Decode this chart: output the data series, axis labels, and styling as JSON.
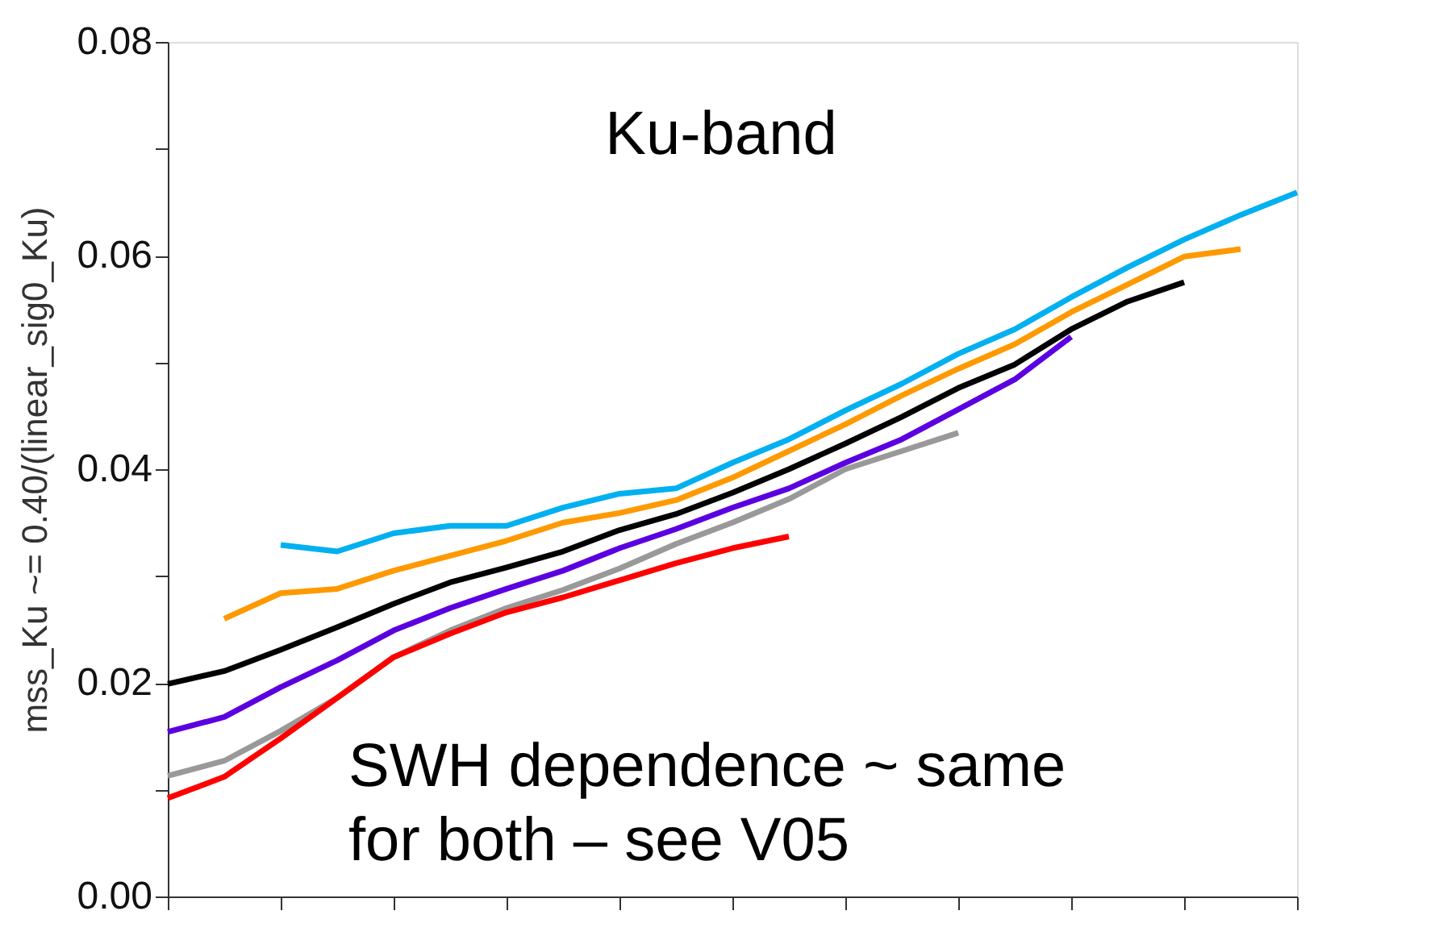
{
  "chart_data": {
    "type": "line",
    "ylabel": "mss_Ku ~= 0.40/(linear_sig0_Ku)",
    "annotations": [
      "Ku-band",
      "SWH dependence ~ same\nfor both – see V05"
    ],
    "categories": [
      null,
      null,
      null,
      null,
      null,
      null,
      null,
      null,
      null,
      null,
      null,
      null,
      null,
      null,
      null,
      null,
      null,
      null,
      null,
      null,
      null
    ],
    "series": [
      {
        "color": "#00b0f0",
        "values": [
          null,
          null,
          0.0329,
          0.0323,
          0.034,
          0.0347,
          0.0347,
          0.0364,
          0.0377,
          0.0382,
          0.0406,
          0.0428,
          0.0455,
          0.048,
          0.0508,
          0.0531,
          0.0561,
          0.0589,
          0.0615,
          0.0638,
          0.0659
        ]
      },
      {
        "color": "#ff9900",
        "values": [
          null,
          0.026,
          0.0284,
          0.0288,
          0.0305,
          0.0319,
          0.0333,
          0.035,
          0.0359,
          0.0371,
          0.0392,
          0.0417,
          0.0442,
          0.0469,
          0.0494,
          0.0517,
          0.0547,
          0.0573,
          0.0599,
          0.0606,
          null
        ]
      },
      {
        "color": "#000000",
        "values": [
          0.0199,
          0.0211,
          0.0231,
          0.0252,
          0.0274,
          0.0294,
          0.0308,
          0.0323,
          0.0343,
          0.0358,
          0.0378,
          0.04,
          0.0424,
          0.0449,
          0.0476,
          0.0498,
          0.0531,
          0.0557,
          0.0575,
          null,
          null
        ]
      },
      {
        "color": "#5b00e0",
        "values": [
          0.0154,
          0.0168,
          0.0196,
          0.0221,
          0.0249,
          0.027,
          0.0288,
          0.0305,
          0.0326,
          0.0344,
          0.0364,
          0.0382,
          0.0406,
          0.0428,
          0.0456,
          0.0484,
          0.0524,
          null,
          null,
          null,
          null
        ]
      },
      {
        "color": "#999999",
        "values": [
          0.0113,
          0.0127,
          0.0155,
          0.0186,
          0.0224,
          0.0249,
          0.027,
          0.0287,
          0.0307,
          0.033,
          0.035,
          0.0372,
          0.04,
          0.0417,
          0.0434,
          null,
          null,
          null,
          null,
          null,
          null
        ]
      },
      {
        "color": "#ff0000",
        "values": [
          0.0092,
          0.0112,
          0.0148,
          0.0186,
          0.0224,
          0.0246,
          0.0266,
          0.028,
          0.0296,
          0.0312,
          0.0326,
          0.0337,
          null,
          null,
          null,
          null,
          null,
          null,
          null,
          null,
          null
        ]
      }
    ],
    "ylim": [
      0,
      0.08
    ],
    "yticks": [
      {
        "value": 0,
        "label": "0.00"
      },
      {
        "value": 0.01,
        "label": null
      },
      0.02,
      {
        "value": 0.03,
        "label": null
      },
      0.04,
      {
        "value": 0.05,
        "label": null
      },
      0.06,
      {
        "value": 0.07,
        "label": null
      },
      0.08
    ],
    "tick_labels": "y",
    "grid": false,
    "marker": "none",
    "line_style": "solid"
  }
}
